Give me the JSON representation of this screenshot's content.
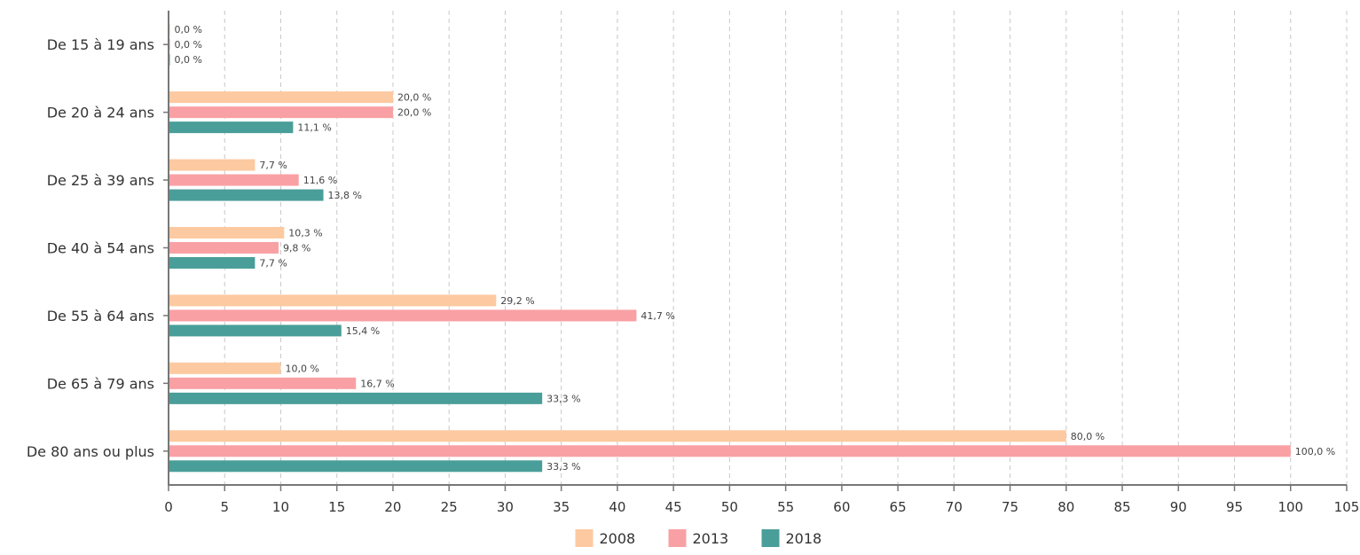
{
  "chart_data": {
    "type": "bar",
    "orientation": "horizontal",
    "categories": [
      "De 15 à 19 ans",
      "De 20 à 24 ans",
      "De 25 à 39 ans",
      "De 40 à 54 ans",
      "De 55 à 64 ans",
      "De 65 à 79 ans",
      "De 80 ans ou plus"
    ],
    "series": [
      {
        "name": "2008",
        "color": "#fdc9a0",
        "values": [
          0.0,
          20.0,
          7.7,
          10.3,
          29.2,
          10.0,
          80.0
        ],
        "labels": [
          "0,0 %",
          "20,0 %",
          "7,7 %",
          "10,3 %",
          "29,2 %",
          "10,0 %",
          "80,0 %"
        ]
      },
      {
        "name": "2013",
        "color": "#f9a0a4",
        "values": [
          0.0,
          20.0,
          11.6,
          9.8,
          41.7,
          16.7,
          100.0
        ],
        "labels": [
          "0,0 %",
          "20,0 %",
          "11,6 %",
          "9,8 %",
          "41,7 %",
          "16,7 %",
          "100,0 %"
        ]
      },
      {
        "name": "2018",
        "color": "#4a9e99",
        "values": [
          0.0,
          11.1,
          13.8,
          7.7,
          15.4,
          33.3,
          33.3
        ],
        "labels": [
          "0,0 %",
          "11,1 %",
          "13,8 %",
          "7,7 %",
          "15,4 %",
          "33,3 %",
          "33,3 %"
        ]
      }
    ],
    "xlim": [
      0,
      105
    ],
    "xticks": [
      "0",
      "5",
      "10",
      "15",
      "20",
      "25",
      "30",
      "35",
      "40",
      "45",
      "50",
      "55",
      "60",
      "65",
      "70",
      "75",
      "80",
      "85",
      "90",
      "95",
      "100",
      "105"
    ],
    "grid": "vertical dashed",
    "legend_position": "bottom-center",
    "title": "",
    "xlabel": "",
    "ylabel": ""
  }
}
